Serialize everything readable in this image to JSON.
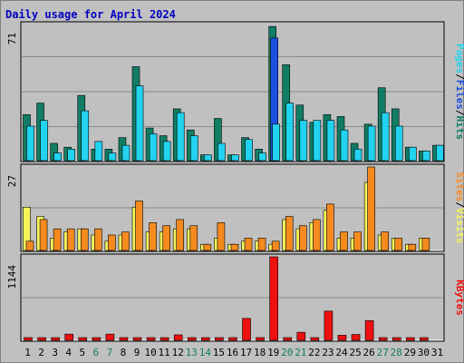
{
  "title": "Daily usage for April 2024",
  "colors": {
    "title": "#0000c0",
    "hits": "#117d64",
    "files": "#1a4fe0",
    "pages": "#22d3f0",
    "visits": "#f5f55a",
    "sites": "#f58a1f",
    "kbytes": "#ef1010",
    "weekend": "#117d64",
    "weekday": "#000000",
    "panel": "#c0c0c0",
    "grid": "#8c8c8c"
  },
  "chart_data": [
    {
      "type": "bar",
      "panel": "hits-files-pages",
      "ymax_label": "71",
      "ylim": [
        0,
        71
      ],
      "categories": [
        "1",
        "2",
        "3",
        "4",
        "5",
        "6",
        "7",
        "8",
        "9",
        "10",
        "11",
        "12",
        "13",
        "14",
        "15",
        "16",
        "17",
        "18",
        "19",
        "20",
        "21",
        "22",
        "23",
        "24",
        "25",
        "26",
        "27",
        "28",
        "29",
        "30",
        "31"
      ],
      "series": [
        {
          "name": "Hits",
          "values": [
            24,
            30,
            9,
            7,
            34,
            6,
            6,
            12,
            49,
            17,
            13,
            27,
            16,
            3,
            22,
            3,
            12,
            6,
            70,
            50,
            29,
            20,
            24,
            23,
            9,
            19,
            38,
            27,
            7,
            5,
            8
          ]
        },
        {
          "name": "Files",
          "values": [
            0,
            0,
            0,
            0,
            0,
            0,
            0,
            0,
            0,
            0,
            0,
            0,
            0,
            0,
            0,
            0,
            0,
            0,
            64,
            0,
            0,
            0,
            0,
            0,
            0,
            0,
            0,
            0,
            0,
            0,
            0
          ]
        },
        {
          "name": "Pages",
          "values": [
            18,
            21,
            4,
            6,
            26,
            10,
            4,
            8,
            39,
            14,
            10,
            25,
            13,
            3,
            9,
            3,
            11,
            4,
            19,
            30,
            21,
            21,
            21,
            16,
            6,
            18,
            25,
            18,
            7,
            5,
            8
          ]
        }
      ],
      "labels": [
        "Pages",
        "Files",
        "Hits"
      ]
    },
    {
      "type": "bar",
      "panel": "visits-sites",
      "ymax_label": "27",
      "ylim": [
        0,
        27
      ],
      "categories": [
        "1",
        "2",
        "3",
        "4",
        "5",
        "6",
        "7",
        "8",
        "9",
        "10",
        "11",
        "12",
        "13",
        "14",
        "15",
        "16",
        "17",
        "18",
        "19",
        "20",
        "21",
        "22",
        "23",
        "24",
        "25",
        "26",
        "27",
        "28",
        "29",
        "30",
        "31"
      ],
      "series": [
        {
          "name": "Visits",
          "values": [
            14,
            11,
            4,
            6,
            7,
            5,
            3,
            5,
            14,
            6,
            6,
            7,
            7,
            2,
            4,
            2,
            3,
            3,
            2,
            10,
            7,
            9,
            13,
            4,
            4,
            22,
            5,
            4,
            2,
            4,
            0
          ]
        },
        {
          "name": "Sites",
          "values": [
            3,
            10,
            7,
            7,
            7,
            7,
            5,
            6,
            16,
            9,
            8,
            10,
            8,
            2,
            9,
            2,
            4,
            4,
            3,
            11,
            8,
            10,
            15,
            6,
            6,
            27,
            6,
            4,
            2,
            4,
            0
          ]
        }
      ],
      "labels": [
        "Sites",
        "/",
        "Visits"
      ]
    },
    {
      "type": "bar",
      "panel": "kbytes",
      "ymax_label": "1144",
      "ylim": [
        0,
        1144
      ],
      "categories": [
        "1",
        "2",
        "3",
        "4",
        "5",
        "6",
        "7",
        "8",
        "9",
        "10",
        "11",
        "12",
        "13",
        "14",
        "15",
        "16",
        "17",
        "18",
        "19",
        "20",
        "21",
        "22",
        "23",
        "24",
        "25",
        "26",
        "27",
        "28",
        "29",
        "30",
        "31"
      ],
      "series": [
        {
          "name": "KBytes",
          "values": [
            37,
            30,
            12,
            85,
            5,
            8,
            85,
            10,
            10,
            10,
            12,
            75,
            10,
            10,
            10,
            8,
            300,
            8,
            1144,
            30,
            110,
            10,
            400,
            70,
            80,
            270,
            20,
            15,
            12,
            10,
            0
          ]
        }
      ],
      "labels": [
        "KBytes"
      ]
    }
  ],
  "weekend_days": [
    "6",
    "7",
    "13",
    "14",
    "20",
    "21",
    "27",
    "28"
  ]
}
